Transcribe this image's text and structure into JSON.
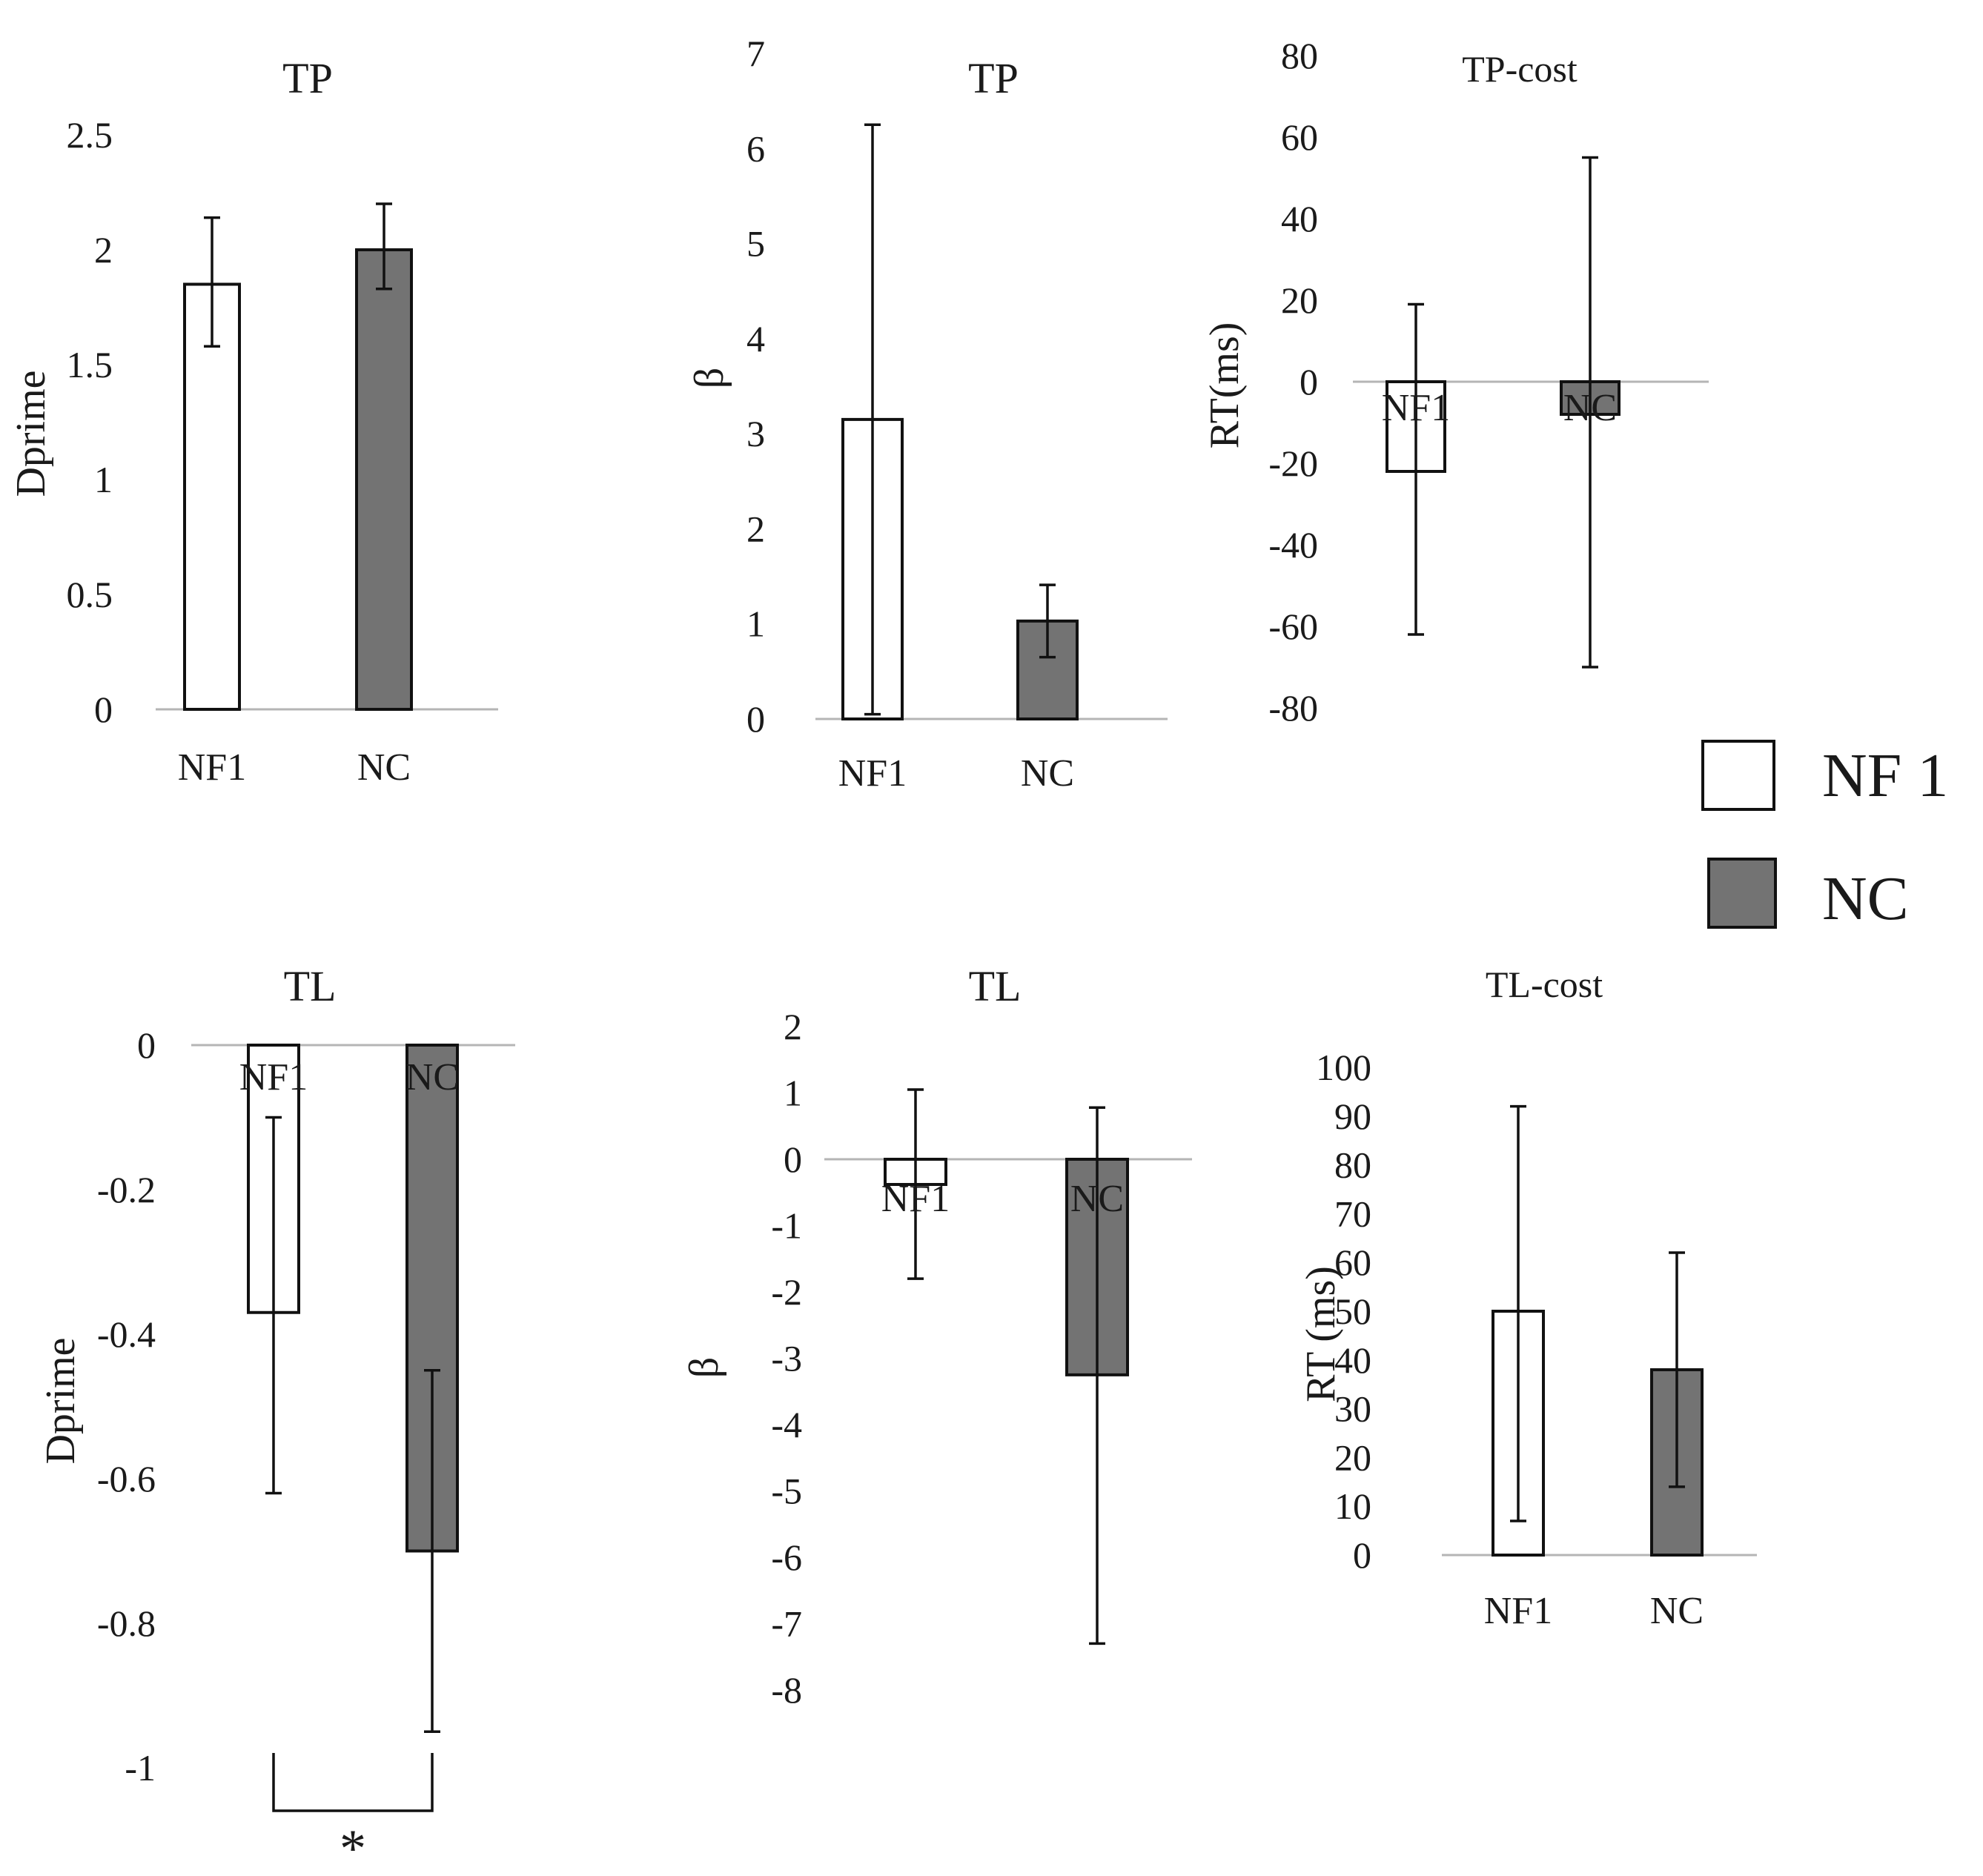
{
  "colors": {
    "nf1_fill": "#ffffff",
    "nc_fill": "#737373",
    "bar_stroke": "#111111"
  },
  "legend": {
    "items": [
      {
        "label": "NF 1",
        "color": "#ffffff"
      },
      {
        "label": "NC",
        "color": "#737373"
      }
    ]
  },
  "chart_data": [
    {
      "id": "tp-dprime",
      "type": "bar",
      "title": "TP",
      "ylabel": "Dprime",
      "ylim": [
        0,
        2.5
      ],
      "ticks": [
        0,
        0.5,
        1,
        1.5,
        2,
        2.5
      ],
      "tick_labels": [
        "0",
        "0.5",
        "1",
        "1.5",
        "2",
        "2.5"
      ],
      "categories": [
        "NF1",
        "NC"
      ],
      "values": [
        1.85,
        2.0
      ],
      "err_low": [
        1.58,
        1.83
      ],
      "err_high": [
        2.14,
        2.2
      ]
    },
    {
      "id": "tp-beta",
      "type": "bar",
      "title": "TP",
      "ylabel": "β",
      "ylim": [
        0,
        7
      ],
      "ticks": [
        0,
        1,
        2,
        3,
        4,
        5,
        6,
        7
      ],
      "tick_labels": [
        "0",
        "1",
        "2",
        "3",
        "4",
        "5",
        "6",
        "7"
      ],
      "categories": [
        "NF1",
        "NC"
      ],
      "values": [
        3.15,
        1.03
      ],
      "err_low": [
        0.05,
        0.65
      ],
      "err_high": [
        6.25,
        1.41
      ]
    },
    {
      "id": "tp-cost",
      "type": "bar",
      "title": "TP-cost",
      "ylabel": "RT(ms)",
      "ylim": [
        -80,
        80
      ],
      "ticks": [
        -80,
        -60,
        -40,
        -20,
        0,
        20,
        40,
        60,
        80
      ],
      "tick_labels": [
        "-80",
        "-60",
        "-40",
        "-20",
        "0",
        "20",
        "40",
        "60",
        "80"
      ],
      "categories": [
        "NF1",
        "NC"
      ],
      "values": [
        -22,
        -8
      ],
      "err_low": [
        -62,
        -70
      ],
      "err_high": [
        19,
        55
      ]
    },
    {
      "id": "tl-dprime",
      "type": "bar",
      "title": "TL",
      "ylabel": "Dprime",
      "ylim": [
        -1,
        0
      ],
      "ticks": [
        -1,
        -0.8,
        -0.6,
        -0.4,
        -0.2,
        0
      ],
      "tick_labels": [
        "-1",
        "-0.8",
        "-0.6",
        "-0.4",
        "-0.2",
        "0"
      ],
      "categories": [
        "NF1",
        "NC"
      ],
      "values": [
        -0.37,
        -0.7
      ],
      "err_low": [
        -0.62,
        -0.95
      ],
      "err_high": [
        -0.1,
        -0.45
      ],
      "significance": "*"
    },
    {
      "id": "tl-beta",
      "type": "bar",
      "title": "TL",
      "ylabel": "β",
      "ylim": [
        -8,
        2
      ],
      "ticks": [
        -8,
        -7,
        -6,
        -5,
        -4,
        -3,
        -2,
        -1,
        0,
        1,
        2
      ],
      "tick_labels": [
        "-8",
        "-7",
        "-6",
        "-5",
        "-4",
        "-3",
        "-2",
        "-1",
        "0",
        "1",
        "2"
      ],
      "categories": [
        "NF1",
        "NC"
      ],
      "values": [
        -0.38,
        -3.25
      ],
      "err_low": [
        -1.8,
        -7.3
      ],
      "err_high": [
        1.05,
        0.78
      ]
    },
    {
      "id": "tl-cost",
      "type": "bar",
      "title": "TL-cost",
      "ylabel": "RT (ms)",
      "ylim": [
        0,
        100
      ],
      "ticks": [
        0,
        10,
        20,
        30,
        40,
        50,
        60,
        70,
        80,
        90,
        100
      ],
      "tick_labels": [
        "0",
        "10",
        "20",
        "30",
        "40",
        "50",
        "60",
        "70",
        "80",
        "90",
        "100"
      ],
      "categories": [
        "NF1",
        "NC"
      ],
      "values": [
        50,
        38
      ],
      "err_low": [
        7,
        14
      ],
      "err_high": [
        92,
        62
      ]
    }
  ]
}
